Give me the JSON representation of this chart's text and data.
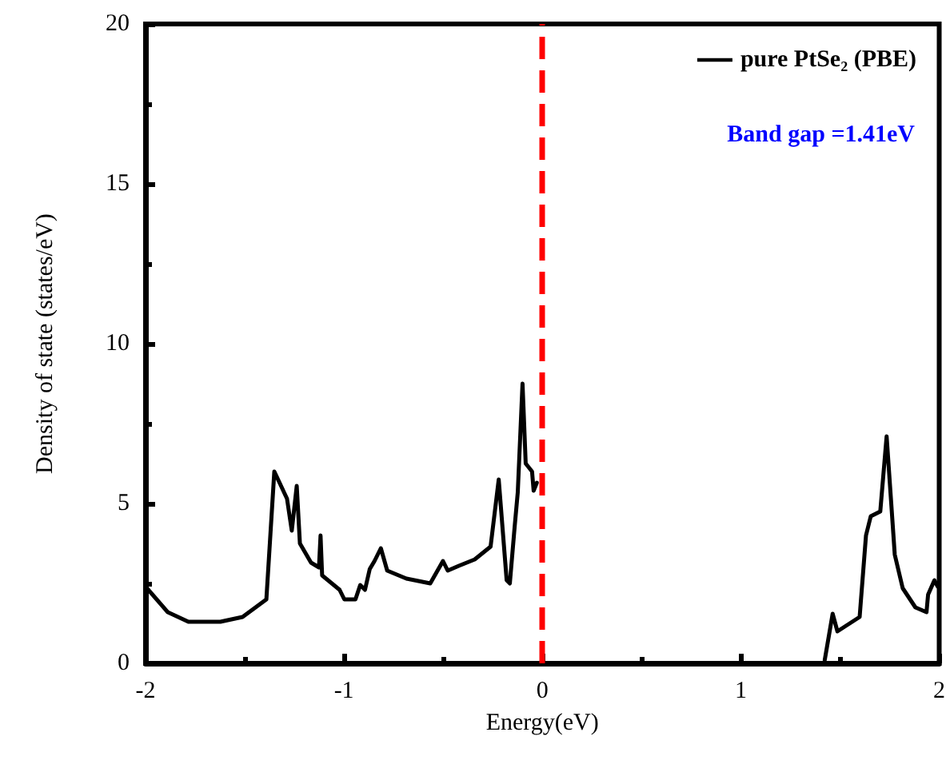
{
  "chart_data": {
    "type": "line",
    "xlabel": "Energy(eV)",
    "ylabel": "Density of state (states/eV)",
    "xlim": [
      -2,
      2
    ],
    "xticks": [
      -2,
      -1,
      0,
      1,
      2
    ],
    "ylim": [
      0,
      20
    ],
    "yticks": [
      0,
      5,
      10,
      15,
      20
    ],
    "grid": false,
    "legend": "top right",
    "marker": "none",
    "line_style": "solid",
    "annotations": [
      "Band gap =1.41eV"
    ],
    "ref_lines": [
      {
        "axis": "x",
        "value": 0,
        "label": null,
        "color": "#ff0000",
        "line_style": "dashed"
      }
    ],
    "series": [
      {
        "name": "pure PtSe₂ (PBE)",
        "color": "#000000",
        "x": [
          -2.0,
          -1.888,
          -1.784,
          -1.623,
          -1.511,
          -1.391,
          -1.351,
          -1.287,
          -1.263,
          -1.238,
          -1.222,
          -1.166,
          -1.126,
          -1.118,
          -1.11,
          -1.022,
          -0.998,
          -0.942,
          -0.918,
          -0.894,
          -0.87,
          -0.846,
          -0.814,
          -0.782,
          -0.685,
          -0.565,
          -0.501,
          -0.477,
          -0.421,
          -0.341,
          -0.261,
          -0.22,
          -0.18,
          -0.164,
          -0.14,
          -0.124,
          -0.1,
          -0.084,
          -0.052,
          -0.044,
          -0.028,
          0.7,
          1.423,
          1.463,
          1.487,
          1.599,
          1.631,
          1.655,
          1.703,
          1.735,
          1.776,
          1.816,
          1.88,
          1.936,
          1.944,
          1.976,
          1.992
        ],
        "values": [
          2.4,
          1.6,
          1.3,
          1.3,
          1.45,
          2.0,
          6.0,
          5.15,
          4.15,
          5.55,
          3.75,
          3.15,
          3.0,
          4.0,
          2.75,
          2.3,
          2.0,
          2.0,
          2.45,
          2.3,
          2.95,
          3.2,
          3.6,
          2.9,
          2.65,
          2.5,
          3.2,
          2.9,
          3.05,
          3.25,
          3.65,
          5.75,
          2.6,
          2.5,
          4.25,
          5.35,
          8.75,
          6.25,
          6.0,
          5.4,
          5.65,
          null,
          0.1,
          1.55,
          1.0,
          1.45,
          4.0,
          4.6,
          4.75,
          7.1,
          3.4,
          2.35,
          1.75,
          1.6,
          2.15,
          2.6,
          2.4
        ]
      }
    ]
  }
}
